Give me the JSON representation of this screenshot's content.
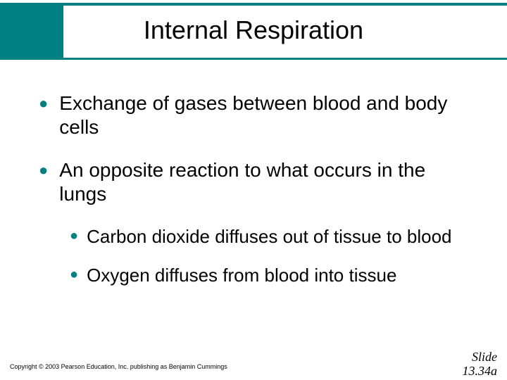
{
  "title": "Internal Respiration",
  "bullets": [
    {
      "level": 1,
      "text": "Exchange of gases between blood and body cells"
    },
    {
      "level": 1,
      "text": "An opposite reaction to what occurs in the lungs"
    },
    {
      "level": 2,
      "text": "Carbon dioxide diffuses out of tissue to blood"
    },
    {
      "level": 2,
      "text": "Oxygen diffuses from blood into tissue"
    }
  ],
  "copyright": "Copyright © 2003 Pearson Education, Inc. publishing as Benjamin Cummings",
  "slide_label": "Slide",
  "slide_number": "13.34a",
  "colors": {
    "accent": "#008080",
    "text": "#000000",
    "background": "#ffffff"
  }
}
